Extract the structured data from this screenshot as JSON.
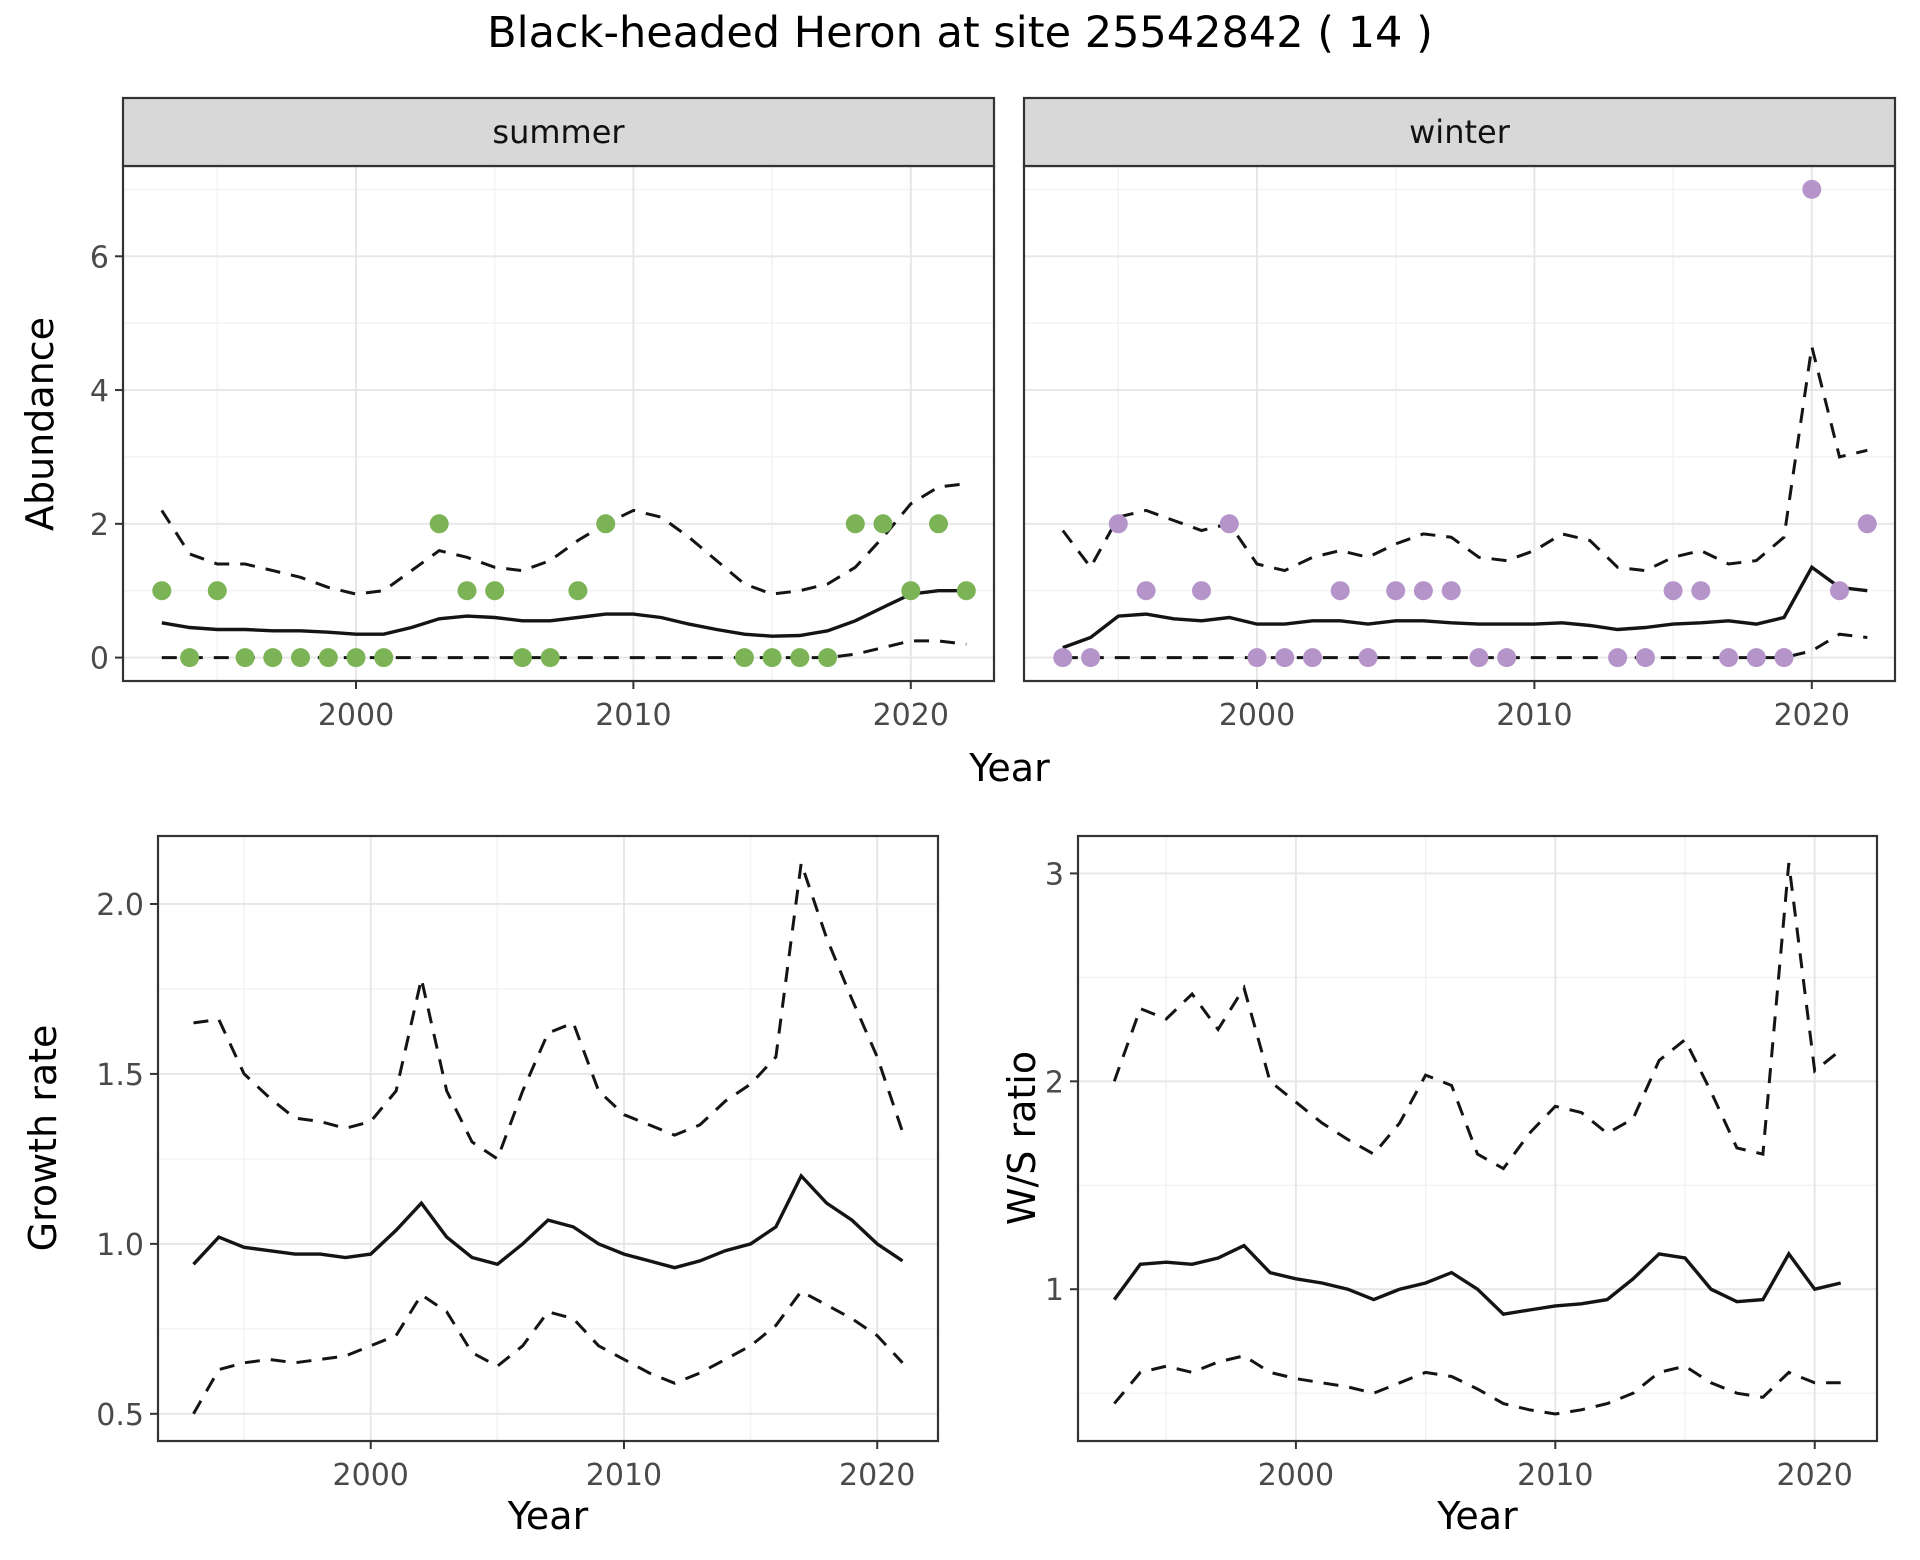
{
  "title": "Black-headed Heron at site 25542842 ( 14 )",
  "axes": {
    "y_top": "Abundance",
    "x_top": "Year",
    "y_growth": "Growth rate",
    "x_growth": "Year",
    "y_ws": "W/S ratio",
    "x_ws": "Year"
  },
  "colors": {
    "summer_points": "#7CB356",
    "winter_points": "#B594C9",
    "line": "#141414",
    "strip_fill": "#d8d8d8",
    "grid_major": "#e6e6e6",
    "grid_minor": "#f2f2f2"
  },
  "chart_data": [
    {
      "id": "abundance-summer",
      "type": "line+scatter",
      "facet": "summer",
      "xlabel": "Year",
      "ylabel": "Abundance",
      "xlim": [
        1991.6,
        2023.0
      ],
      "ylim": [
        -0.35,
        7.35
      ],
      "xticks": {
        "values": [
          2000,
          2010,
          2020
        ],
        "labels": [
          "2000",
          "2010",
          "2020"
        ]
      },
      "yticks": {
        "values": [
          0,
          2,
          4,
          6
        ],
        "labels": [
          "0",
          "2",
          "4",
          "6"
        ]
      },
      "x": [
        1993,
        1994,
        1995,
        1996,
        1997,
        1998,
        1999,
        2000,
        2001,
        2002,
        2003,
        2004,
        2005,
        2006,
        2007,
        2008,
        2009,
        2010,
        2011,
        2012,
        2013,
        2014,
        2015,
        2016,
        2017,
        2018,
        2019,
        2020,
        2021,
        2022
      ],
      "series": [
        {
          "name": "median",
          "style": "solid",
          "values": [
            0.52,
            0.45,
            0.42,
            0.42,
            0.4,
            0.4,
            0.38,
            0.35,
            0.35,
            0.45,
            0.58,
            0.62,
            0.6,
            0.55,
            0.55,
            0.6,
            0.65,
            0.65,
            0.6,
            0.5,
            0.42,
            0.35,
            0.32,
            0.33,
            0.4,
            0.55,
            0.75,
            0.95,
            1.0,
            1.0
          ]
        },
        {
          "name": "upper_ci",
          "style": "dashed",
          "values": [
            2.2,
            1.55,
            1.4,
            1.4,
            1.3,
            1.2,
            1.05,
            0.95,
            1.0,
            1.3,
            1.6,
            1.5,
            1.35,
            1.3,
            1.45,
            1.75,
            2.0,
            2.2,
            2.1,
            1.8,
            1.45,
            1.1,
            0.95,
            1.0,
            1.1,
            1.35,
            1.8,
            2.3,
            2.55,
            2.6
          ]
        },
        {
          "name": "lower_ci",
          "style": "dashed",
          "values": [
            0,
            0,
            0,
            0,
            0,
            0,
            0,
            0,
            0,
            0,
            0,
            0,
            0,
            0,
            0,
            0,
            0,
            0,
            0,
            0,
            0,
            0,
            0,
            0,
            0,
            0.05,
            0.15,
            0.25,
            0.25,
            0.2
          ]
        }
      ],
      "points": {
        "color": "#7CB356",
        "x": [
          1993,
          1994,
          1995,
          1996,
          1997,
          1998,
          1999,
          2000,
          2001,
          2003,
          2004,
          2005,
          2006,
          2007,
          2008,
          2009,
          2014,
          2015,
          2016,
          2017,
          2018,
          2019,
          2020,
          2021,
          2022
        ],
        "y": [
          1,
          0,
          1,
          0,
          0,
          0,
          0,
          0,
          0,
          2,
          1,
          1,
          0,
          0,
          1,
          2,
          0,
          0,
          0,
          0,
          2,
          2,
          1,
          2,
          1
        ]
      }
    },
    {
      "id": "abundance-winter",
      "type": "line+scatter",
      "facet": "winter",
      "xlabel": "Year",
      "ylabel": "Abundance",
      "xlim": [
        1991.6,
        2023.0
      ],
      "ylim": [
        -0.35,
        7.35
      ],
      "xticks": {
        "values": [
          2000,
          2010,
          2020
        ],
        "labels": [
          "2000",
          "2010",
          "2020"
        ]
      },
      "yticks": {
        "values": [
          0,
          2,
          4,
          6
        ],
        "labels": [
          "0",
          "2",
          "4",
          "6"
        ]
      },
      "x": [
        1993,
        1994,
        1995,
        1996,
        1997,
        1998,
        1999,
        2000,
        2001,
        2002,
        2003,
        2004,
        2005,
        2006,
        2007,
        2008,
        2009,
        2010,
        2011,
        2012,
        2013,
        2014,
        2015,
        2016,
        2017,
        2018,
        2019,
        2020,
        2021,
        2022
      ],
      "series": [
        {
          "name": "median",
          "style": "solid",
          "values": [
            0.15,
            0.3,
            0.62,
            0.65,
            0.58,
            0.55,
            0.6,
            0.5,
            0.5,
            0.55,
            0.55,
            0.5,
            0.55,
            0.55,
            0.52,
            0.5,
            0.5,
            0.5,
            0.52,
            0.48,
            0.42,
            0.45,
            0.5,
            0.52,
            0.55,
            0.5,
            0.6,
            1.35,
            1.05,
            1.0
          ]
        },
        {
          "name": "upper_ci",
          "style": "dashed",
          "values": [
            1.9,
            1.35,
            2.1,
            2.2,
            2.05,
            1.9,
            2.0,
            1.4,
            1.3,
            1.5,
            1.6,
            1.5,
            1.7,
            1.85,
            1.8,
            1.5,
            1.45,
            1.6,
            1.85,
            1.75,
            1.35,
            1.3,
            1.5,
            1.6,
            1.4,
            1.45,
            1.8,
            4.65,
            3.0,
            3.1
          ]
        },
        {
          "name": "lower_ci",
          "style": "dashed",
          "values": [
            0,
            0,
            0,
            0,
            0,
            0,
            0,
            0,
            0,
            0,
            0,
            0,
            0,
            0,
            0,
            0,
            0,
            0,
            0,
            0,
            0,
            0,
            0,
            0,
            0,
            0,
            0,
            0.1,
            0.35,
            0.3
          ]
        }
      ],
      "points": {
        "color": "#B594C9",
        "x": [
          1993,
          1994,
          1995,
          1996,
          1998,
          1999,
          2000,
          2001,
          2002,
          2003,
          2004,
          2005,
          2006,
          2007,
          2008,
          2009,
          2013,
          2014,
          2015,
          2016,
          2017,
          2018,
          2019,
          2020,
          2021,
          2022
        ],
        "y": [
          0,
          0,
          2,
          1,
          1,
          2,
          0,
          0,
          0,
          1,
          0,
          1,
          1,
          1,
          0,
          0,
          0,
          0,
          1,
          1,
          0,
          0,
          0,
          7,
          1,
          2
        ]
      }
    },
    {
      "id": "growth-rate",
      "type": "line",
      "facet": null,
      "xlabel": "Year",
      "ylabel": "Growth rate",
      "xlim": [
        1991.6,
        2022.4
      ],
      "ylim": [
        0.42,
        2.2
      ],
      "xticks": {
        "values": [
          2000,
          2010,
          2020
        ],
        "labels": [
          "2000",
          "2010",
          "2020"
        ]
      },
      "yticks": {
        "values": [
          0.5,
          1.0,
          1.5,
          2.0
        ],
        "labels": [
          "0.5",
          "1.0",
          "1.5",
          "2.0"
        ]
      },
      "x": [
        1993,
        1994,
        1995,
        1996,
        1997,
        1998,
        1999,
        2000,
        2001,
        2002,
        2003,
        2004,
        2005,
        2006,
        2007,
        2008,
        2009,
        2010,
        2011,
        2012,
        2013,
        2014,
        2015,
        2016,
        2017,
        2018,
        2019,
        2020,
        2021
      ],
      "series": [
        {
          "name": "median",
          "style": "solid",
          "values": [
            0.94,
            1.02,
            0.99,
            0.98,
            0.97,
            0.97,
            0.96,
            0.97,
            1.04,
            1.12,
            1.02,
            0.96,
            0.94,
            1.0,
            1.07,
            1.05,
            1.0,
            0.97,
            0.95,
            0.93,
            0.95,
            0.98,
            1.0,
            1.05,
            1.2,
            1.12,
            1.07,
            1.0,
            0.95
          ]
        },
        {
          "name": "upper_ci",
          "style": "dashed",
          "values": [
            1.65,
            1.66,
            1.5,
            1.43,
            1.37,
            1.36,
            1.34,
            1.36,
            1.45,
            1.78,
            1.45,
            1.3,
            1.25,
            1.45,
            1.62,
            1.65,
            1.45,
            1.38,
            1.35,
            1.32,
            1.35,
            1.42,
            1.47,
            1.55,
            2.12,
            1.9,
            1.72,
            1.55,
            1.33
          ]
        },
        {
          "name": "lower_ci",
          "style": "dashed",
          "values": [
            0.5,
            0.63,
            0.65,
            0.66,
            0.65,
            0.66,
            0.67,
            0.7,
            0.73,
            0.85,
            0.8,
            0.68,
            0.64,
            0.7,
            0.8,
            0.78,
            0.7,
            0.66,
            0.62,
            0.59,
            0.62,
            0.66,
            0.7,
            0.76,
            0.86,
            0.82,
            0.78,
            0.73,
            0.65
          ]
        }
      ],
      "points": null
    },
    {
      "id": "ws-ratio",
      "type": "line",
      "facet": null,
      "xlabel": "Year",
      "ylabel": "W/S ratio",
      "xlim": [
        1991.6,
        2022.4
      ],
      "ylim": [
        0.27,
        3.18
      ],
      "xticks": {
        "values": [
          2000,
          2010,
          2020
        ],
        "labels": [
          "2000",
          "2010",
          "2020"
        ]
      },
      "yticks": {
        "values": [
          1,
          2,
          3
        ],
        "labels": [
          "1",
          "2",
          "3"
        ]
      },
      "x": [
        1993,
        1994,
        1995,
        1996,
        1997,
        1998,
        1999,
        2000,
        2001,
        2002,
        2003,
        2004,
        2005,
        2006,
        2007,
        2008,
        2009,
        2010,
        2011,
        2012,
        2013,
        2014,
        2015,
        2016,
        2017,
        2018,
        2019,
        2020,
        2021
      ],
      "series": [
        {
          "name": "median",
          "style": "solid",
          "values": [
            0.95,
            1.12,
            1.13,
            1.12,
            1.15,
            1.21,
            1.08,
            1.05,
            1.03,
            1.0,
            0.95,
            1.0,
            1.03,
            1.08,
            1.0,
            0.88,
            0.9,
            0.92,
            0.93,
            0.95,
            1.05,
            1.17,
            1.15,
            1.0,
            0.94,
            0.95,
            1.17,
            1.0,
            1.03
          ]
        },
        {
          "name": "upper_ci",
          "style": "dashed",
          "values": [
            2.0,
            2.35,
            2.3,
            2.42,
            2.25,
            2.45,
            2.0,
            1.9,
            1.8,
            1.72,
            1.65,
            1.8,
            2.03,
            1.98,
            1.65,
            1.58,
            1.75,
            1.88,
            1.85,
            1.75,
            1.82,
            2.1,
            2.2,
            1.95,
            1.68,
            1.65,
            3.05,
            2.05,
            2.15
          ]
        },
        {
          "name": "lower_ci",
          "style": "dashed",
          "values": [
            0.45,
            0.6,
            0.63,
            0.6,
            0.65,
            0.68,
            0.6,
            0.57,
            0.55,
            0.53,
            0.5,
            0.55,
            0.6,
            0.58,
            0.52,
            0.45,
            0.42,
            0.4,
            0.42,
            0.45,
            0.5,
            0.6,
            0.63,
            0.55,
            0.5,
            0.48,
            0.6,
            0.55,
            0.55
          ]
        }
      ],
      "points": null
    }
  ]
}
